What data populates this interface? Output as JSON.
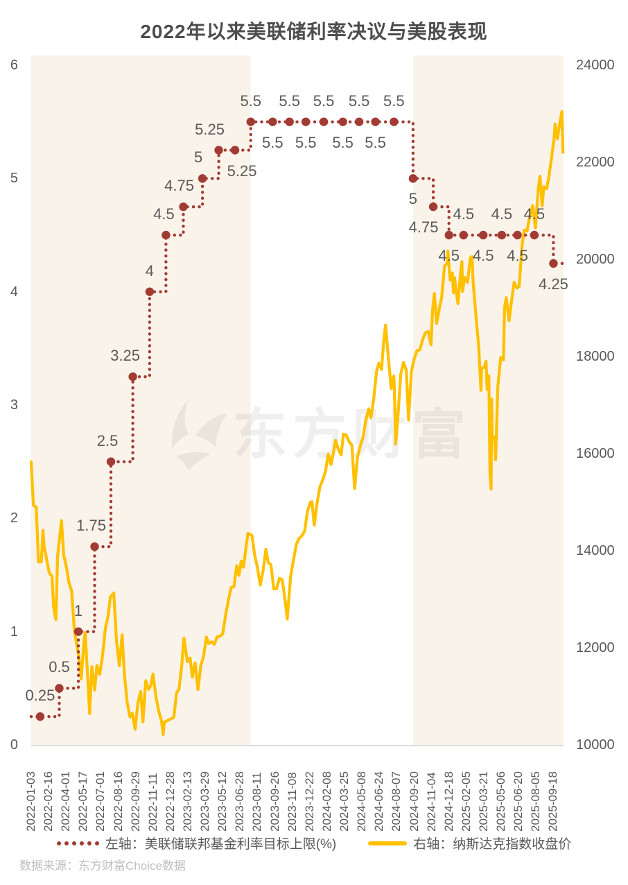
{
  "title": "2022年以来美联储利率决议与美股表现",
  "watermark": "东方财富",
  "source_note": "数据来源：东方财富Choice数据",
  "legend": [
    {
      "label": "左轴：美联储联邦基金利率目标上限(%)",
      "style": "dotted",
      "color": "#A23B33"
    },
    {
      "label": "右轴：纳斯达克指数收盘价",
      "style": "solid",
      "color": "#FFC000"
    }
  ],
  "colors": {
    "rate_line": "#A23B33",
    "nasdaq_line": "#FFC000",
    "band": "#FAF3EA",
    "white_band": "#FFFFFF",
    "axis_text": "#595959",
    "title_text": "#4D4D4D",
    "source_text": "#BFBFBF",
    "axis_line": "#DCDCDC"
  },
  "chart_data": {
    "type": "line",
    "title": "2022年以来美联储利率决议与美股表现",
    "left_axis": {
      "min": 0,
      "max": 6,
      "ticks": [
        0,
        1,
        2,
        3,
        4,
        5,
        6
      ],
      "series": "美联储联邦基金利率目标上限(%)"
    },
    "right_axis": {
      "min": 10000,
      "max": 24000,
      "ticks": [
        10000,
        12000,
        14000,
        16000,
        18000,
        20000,
        22000,
        24000
      ],
      "series": "纳斯达克指数收盘价"
    },
    "grid": false,
    "legend_position": "bottom",
    "x_unit": "trading-day index from 2022-01-03",
    "t_max": 948,
    "x_tick_spacing_trading_days": 31,
    "x_tick_labels": [
      "2022-01-03",
      "2022-02-16",
      "2022-04-01",
      "2022-05-17",
      "2022-07-01",
      "2022-08-16",
      "2022-09-29",
      "2022-11-11",
      "2022-12-28",
      "2023-02-13",
      "2023-03-29",
      "2023-05-12",
      "2023-06-28",
      "2023-08-11",
      "2023-09-26",
      "2023-11-08",
      "2023-12-22",
      "2024-02-08",
      "2024-03-25",
      "2024-05-08",
      "2024-06-24",
      "2024-08-07",
      "2024-09-20",
      "2024-11-04",
      "2024-12-18",
      "2025-02-05",
      "2025-03-21",
      "2025-05-06",
      "2025-06-20",
      "2025-08-05",
      "2025-09-18"
    ],
    "bands": [
      {
        "from_t": 0,
        "to_t": 391,
        "color": "#FAF3EA"
      },
      {
        "from_t": 391,
        "to_t": 680,
        "color": "#FFFFFF"
      },
      {
        "from_t": 680,
        "to_t": 948,
        "color": "#FAF3EA"
      }
    ],
    "rate_series": {
      "name": "美联储联邦基金利率目标上限(%)",
      "axis": "left",
      "start": {
        "t": 0,
        "rate": 0.25
      },
      "end_t": 948,
      "decisions": [
        {
          "date": "2022-01-26",
          "t": 16,
          "rate": 0.25,
          "label": "0.25",
          "label_pos": "above"
        },
        {
          "date": "2022-03-16",
          "t": 50,
          "rate": 0.5,
          "label": "0.5",
          "label_pos": "above"
        },
        {
          "date": "2022-05-04",
          "t": 84,
          "rate": 1,
          "label": "1",
          "label_pos": "above"
        },
        {
          "date": "2022-06-15",
          "t": 113,
          "rate": 1.75,
          "label": "1.75",
          "label_pos": "above",
          "dx": -5
        },
        {
          "date": "2022-07-27",
          "t": 142,
          "rate": 2.5,
          "label": "2.5",
          "label_pos": "above",
          "dx": -5
        },
        {
          "date": "2022-09-21",
          "t": 181,
          "rate": 3.25,
          "label": "3.25",
          "label_pos": "above",
          "dx": -11
        },
        {
          "date": "2022-11-02",
          "t": 211,
          "rate": 4,
          "label": "4",
          "label_pos": "above"
        },
        {
          "date": "2022-12-14",
          "t": 240,
          "rate": 4.5,
          "label": "4.5",
          "label_pos": "above",
          "dx": -3
        },
        {
          "date": "2023-02-01",
          "t": 271,
          "rate": 4.75,
          "label": "4.75",
          "label_pos": "above",
          "dx": -6
        },
        {
          "date": "2023-03-22",
          "t": 305,
          "rate": 5,
          "label": "5",
          "label_pos": "above",
          "dx": -6
        },
        {
          "date": "2023-05-03",
          "t": 334,
          "rate": 5.25,
          "label": "5.25",
          "label_pos": "above",
          "dx": -13
        },
        {
          "date": "2023-06-14",
          "t": 363,
          "rate": 5.25,
          "label": "5.25",
          "label_pos": "below",
          "dx": 10
        },
        {
          "date": "2023-07-26",
          "t": 391,
          "rate": 5.5,
          "label": "5.5",
          "label_pos": "above"
        },
        {
          "date": "2023-09-20",
          "t": 430,
          "rate": 5.5,
          "label": "5.5",
          "label_pos": "below"
        },
        {
          "date": "2023-11-01",
          "t": 460,
          "rate": 5.5,
          "label": "5.5",
          "label_pos": "above"
        },
        {
          "date": "2023-12-13",
          "t": 489,
          "rate": 5.5,
          "label": "5.5",
          "label_pos": "below"
        },
        {
          "date": "2024-01-31",
          "t": 521,
          "rate": 5.5,
          "label": "5.5",
          "label_pos": "above"
        },
        {
          "date": "2024-03-20",
          "t": 555,
          "rate": 5.5,
          "label": "5.5",
          "label_pos": "below"
        },
        {
          "date": "2024-05-01",
          "t": 584,
          "rate": 5.5,
          "label": "5.5",
          "label_pos": "above"
        },
        {
          "date": "2024-06-12",
          "t": 613,
          "rate": 5.5,
          "label": "5.5",
          "label_pos": "below"
        },
        {
          "date": "2024-07-31",
          "t": 646,
          "rate": 5.5,
          "label": "5.5",
          "label_pos": "above"
        },
        {
          "date": "2024-09-18",
          "t": 680,
          "rate": 5,
          "label": "5",
          "label_pos": "below"
        },
        {
          "date": "2024-11-07",
          "t": 716,
          "rate": 4.75,
          "label": "4.75",
          "label_pos": "below",
          "dx": -14
        },
        {
          "date": "2024-12-18",
          "t": 744,
          "rate": 4.5,
          "label": "4.5",
          "label_pos": "below"
        },
        {
          "date": "2025-01-29",
          "t": 770,
          "rate": 4.5,
          "label": "4.5",
          "label_pos": "above"
        },
        {
          "date": "2025-03-19",
          "t": 805,
          "rate": 4.5,
          "label": "4.5",
          "label_pos": "below"
        },
        {
          "date": "2025-05-07",
          "t": 838,
          "rate": 4.5,
          "label": "4.5",
          "label_pos": "above"
        },
        {
          "date": "2025-06-18",
          "t": 866,
          "rate": 4.5,
          "label": "4.5",
          "label_pos": "below"
        },
        {
          "date": "2025-07-30",
          "t": 896,
          "rate": 4.5,
          "label": "4.5",
          "label_pos": "above"
        },
        {
          "date": "2025-09-17",
          "t": 930,
          "rate": 4.25,
          "label": "4.25",
          "label_pos": "below"
        }
      ]
    },
    "nasdaq_series": {
      "name": "纳斯达克指数收盘价",
      "axis": "right",
      "points": [
        [
          0,
          15833
        ],
        [
          4,
          14936
        ],
        [
          9,
          14894
        ],
        [
          13,
          13769
        ],
        [
          18,
          13771
        ],
        [
          21,
          14418
        ],
        [
          23,
          14098
        ],
        [
          28,
          13791
        ],
        [
          32,
          13548
        ],
        [
          37,
          13473
        ],
        [
          40,
          12831
        ],
        [
          44,
          12581
        ],
        [
          47,
          13894
        ],
        [
          54,
          14620
        ],
        [
          58,
          13897
        ],
        [
          62,
          13711
        ],
        [
          67,
          13351
        ],
        [
          72,
          13175
        ],
        [
          77,
          12335
        ],
        [
          80,
          12145
        ],
        [
          85,
          11805
        ],
        [
          89,
          11355
        ],
        [
          94,
          12131
        ],
        [
          96,
          12317
        ],
        [
          101,
          11340
        ],
        [
          104,
          10646
        ],
        [
          108,
          11608
        ],
        [
          113,
          11128
        ],
        [
          117,
          11635
        ],
        [
          122,
          11452
        ],
        [
          127,
          11834
        ],
        [
          132,
          12391
        ],
        [
          137,
          12658
        ],
        [
          141,
          13047
        ],
        [
          147,
          13128
        ],
        [
          152,
          12142
        ],
        [
          157,
          11631
        ],
        [
          162,
          12266
        ],
        [
          166,
          11448
        ],
        [
          171,
          10868
        ],
        [
          176,
          10576
        ],
        [
          180,
          10652
        ],
        [
          185,
          10321
        ],
        [
          190,
          10860
        ],
        [
          195,
          11102
        ],
        [
          199,
          10475
        ],
        [
          204,
          11323
        ],
        [
          209,
          11146
        ],
        [
          213,
          11226
        ],
        [
          217,
          11461
        ],
        [
          222,
          11005
        ],
        [
          227,
          10705
        ],
        [
          232,
          10497
        ],
        [
          235,
          10213
        ],
        [
          237,
          10466
        ],
        [
          254,
          10569
        ],
        [
          259,
          11079
        ],
        [
          263,
          11140
        ],
        [
          268,
          11622
        ],
        [
          272,
          12200
        ],
        [
          278,
          11718
        ],
        [
          283,
          11787
        ],
        [
          287,
          11395
        ],
        [
          292,
          11689
        ],
        [
          297,
          11139
        ],
        [
          302,
          11631
        ],
        [
          307,
          11824
        ],
        [
          312,
          12222
        ],
        [
          316,
          12088
        ],
        [
          321,
          12123
        ],
        [
          326,
          12072
        ],
        [
          331,
          12227
        ],
        [
          336,
          12235
        ],
        [
          341,
          12285
        ],
        [
          346,
          12658
        ],
        [
          351,
          12976
        ],
        [
          356,
          13241
        ],
        [
          361,
          13259
        ],
        [
          366,
          13690
        ],
        [
          370,
          13493
        ],
        [
          374,
          13788
        ],
        [
          378,
          13661
        ],
        [
          383,
          14114
        ],
        [
          386,
          14358
        ],
        [
          393,
          14317
        ],
        [
          398,
          13909
        ],
        [
          403,
          13645
        ],
        [
          408,
          13291
        ],
        [
          413,
          13591
        ],
        [
          418,
          14032
        ],
        [
          422,
          13762
        ],
        [
          427,
          13708
        ],
        [
          432,
          13212
        ],
        [
          437,
          13219
        ],
        [
          442,
          13431
        ],
        [
          447,
          13407
        ],
        [
          452,
          12984
        ],
        [
          456,
          12595
        ],
        [
          462,
          13478
        ],
        [
          467,
          13798
        ],
        [
          472,
          14125
        ],
        [
          477,
          14251
        ],
        [
          482,
          14305
        ],
        [
          487,
          14404
        ],
        [
          492,
          14814
        ],
        [
          497,
          14993
        ],
        [
          500,
          15011
        ],
        [
          504,
          14524
        ],
        [
          509,
          14973
        ],
        [
          514,
          15310
        ],
        [
          519,
          15455
        ],
        [
          524,
          15629
        ],
        [
          529,
          15990
        ],
        [
          534,
          15776
        ],
        [
          538,
          15997
        ],
        [
          542,
          16275
        ],
        [
          547,
          16085
        ],
        [
          552,
          15973
        ],
        [
          556,
          16401
        ],
        [
          561,
          16379
        ],
        [
          566,
          16248
        ],
        [
          571,
          16175
        ],
        [
          576,
          15282
        ],
        [
          581,
          15928
        ],
        [
          586,
          16156
        ],
        [
          591,
          16341
        ],
        [
          596,
          16686
        ],
        [
          601,
          16921
        ],
        [
          605,
          16735
        ],
        [
          610,
          17133
        ],
        [
          615,
          17689
        ],
        [
          619,
          17862
        ],
        [
          624,
          17733
        ],
        [
          628,
          18353
        ],
        [
          631,
          18647
        ],
        [
          636,
          17996
        ],
        [
          641,
          17342
        ],
        [
          646,
          17599
        ],
        [
          648,
          16776
        ],
        [
          649,
          16200
        ],
        [
          653,
          16745
        ],
        [
          658,
          17632
        ],
        [
          663,
          17878
        ],
        [
          668,
          17714
        ],
        [
          672,
          16691
        ],
        [
          677,
          17684
        ],
        [
          682,
          17948
        ],
        [
          687,
          18120
        ],
        [
          692,
          18138
        ],
        [
          697,
          18343
        ],
        [
          702,
          18490
        ],
        [
          707,
          18519
        ],
        [
          712,
          18240
        ],
        [
          715,
          18983
        ],
        [
          718,
          19299
        ],
        [
          722,
          18680
        ],
        [
          727,
          19004
        ],
        [
          731,
          19218
        ],
        [
          736,
          19860
        ],
        [
          741,
          19927
        ],
        [
          742,
          20174
        ],
        [
          746,
          19573
        ],
        [
          750,
          19722
        ],
        [
          752,
          19311
        ],
        [
          754,
          19622
        ],
        [
          759,
          19162
        ],
        [
          760,
          19088
        ],
        [
          764,
          19630
        ],
        [
          767,
          19954
        ],
        [
          768,
          19341
        ],
        [
          772,
          19627
        ],
        [
          777,
          19523
        ],
        [
          782,
          20027
        ],
        [
          785,
          20056
        ],
        [
          787,
          19524
        ],
        [
          792,
          18847
        ],
        [
          797,
          18196
        ],
        [
          801,
          17303
        ],
        [
          802,
          17754
        ],
        [
          807,
          17784
        ],
        [
          810,
          17900
        ],
        [
          812,
          17323
        ],
        [
          815,
          17601
        ],
        [
          816,
          16550
        ],
        [
          817,
          15588
        ],
        [
          819,
          15268
        ],
        [
          820,
          17125
        ],
        [
          821,
          16387
        ],
        [
          825,
          16307
        ],
        [
          827,
          15871
        ],
        [
          831,
          17383
        ],
        [
          836,
          17978
        ],
        [
          841,
          17929
        ],
        [
          843,
          19010
        ],
        [
          846,
          19211
        ],
        [
          851,
          18737
        ],
        [
          855,
          19114
        ],
        [
          860,
          19530
        ],
        [
          865,
          19407
        ],
        [
          869,
          19447
        ],
        [
          874,
          20273
        ],
        [
          878,
          20601
        ],
        [
          883,
          20586
        ],
        [
          888,
          20896
        ],
        [
          893,
          21108
        ],
        [
          898,
          20650
        ],
        [
          903,
          21450
        ],
        [
          906,
          21713
        ],
        [
          910,
          21101
        ],
        [
          913,
          21497
        ],
        [
          918,
          21456
        ],
        [
          922,
          21700
        ],
        [
          926,
          22043
        ],
        [
          931,
          22471
        ],
        [
          933,
          22789
        ],
        [
          937,
          22484
        ],
        [
          941,
          22780
        ],
        [
          945,
          23043
        ],
        [
          947,
          22204
        ]
      ]
    }
  }
}
